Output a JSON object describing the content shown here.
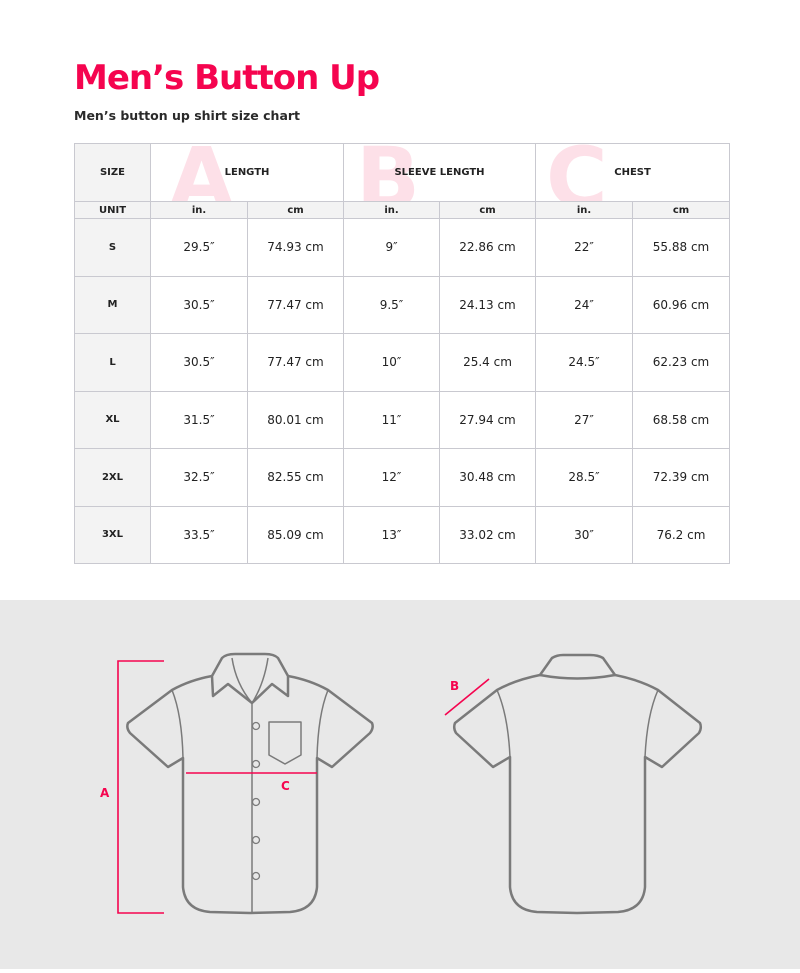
{
  "title": "Men’s Button Up",
  "subtitle": "Men’s button up shirt size chart",
  "table": {
    "size_header": "SIZE",
    "unit_header": "UNIT",
    "groups": [
      {
        "letter": "A",
        "label": "LENGTH"
      },
      {
        "letter": "B",
        "label": "SLEEVE LENGTH"
      },
      {
        "letter": "C",
        "label": "CHEST"
      }
    ],
    "units": [
      "in.",
      "cm",
      "in.",
      "cm",
      "in.",
      "cm"
    ],
    "rows": [
      {
        "size": "S",
        "values": [
          "29.5″",
          "74.93 cm",
          "9″",
          "22.86 cm",
          "22″",
          "55.88 cm"
        ]
      },
      {
        "size": "M",
        "values": [
          "30.5″",
          "77.47 cm",
          "9.5″",
          "24.13 cm",
          "24″",
          "60.96 cm"
        ]
      },
      {
        "size": "L",
        "values": [
          "30.5″",
          "77.47 cm",
          "10″",
          "25.4 cm",
          "24.5″",
          "62.23 cm"
        ]
      },
      {
        "size": "XL",
        "values": [
          "31.5″",
          "80.01 cm",
          "11″",
          "27.94 cm",
          "27″",
          "68.58 cm"
        ]
      },
      {
        "size": "2XL",
        "values": [
          "32.5″",
          "82.55 cm",
          "12″",
          "30.48 cm",
          "28.5″",
          "72.39 cm"
        ]
      },
      {
        "size": "3XL",
        "values": [
          "33.5″",
          "85.09 cm",
          "13″",
          "33.02 cm",
          "30″",
          "76.2 cm"
        ]
      }
    ]
  },
  "diagram": {
    "label_a": "A",
    "label_b": "B",
    "label_c": "C"
  },
  "colors": {
    "accent": "#f5044f",
    "watermark": "#fde0e8",
    "outline": "#7a7a7a",
    "panel": "#e8e8e8"
  }
}
